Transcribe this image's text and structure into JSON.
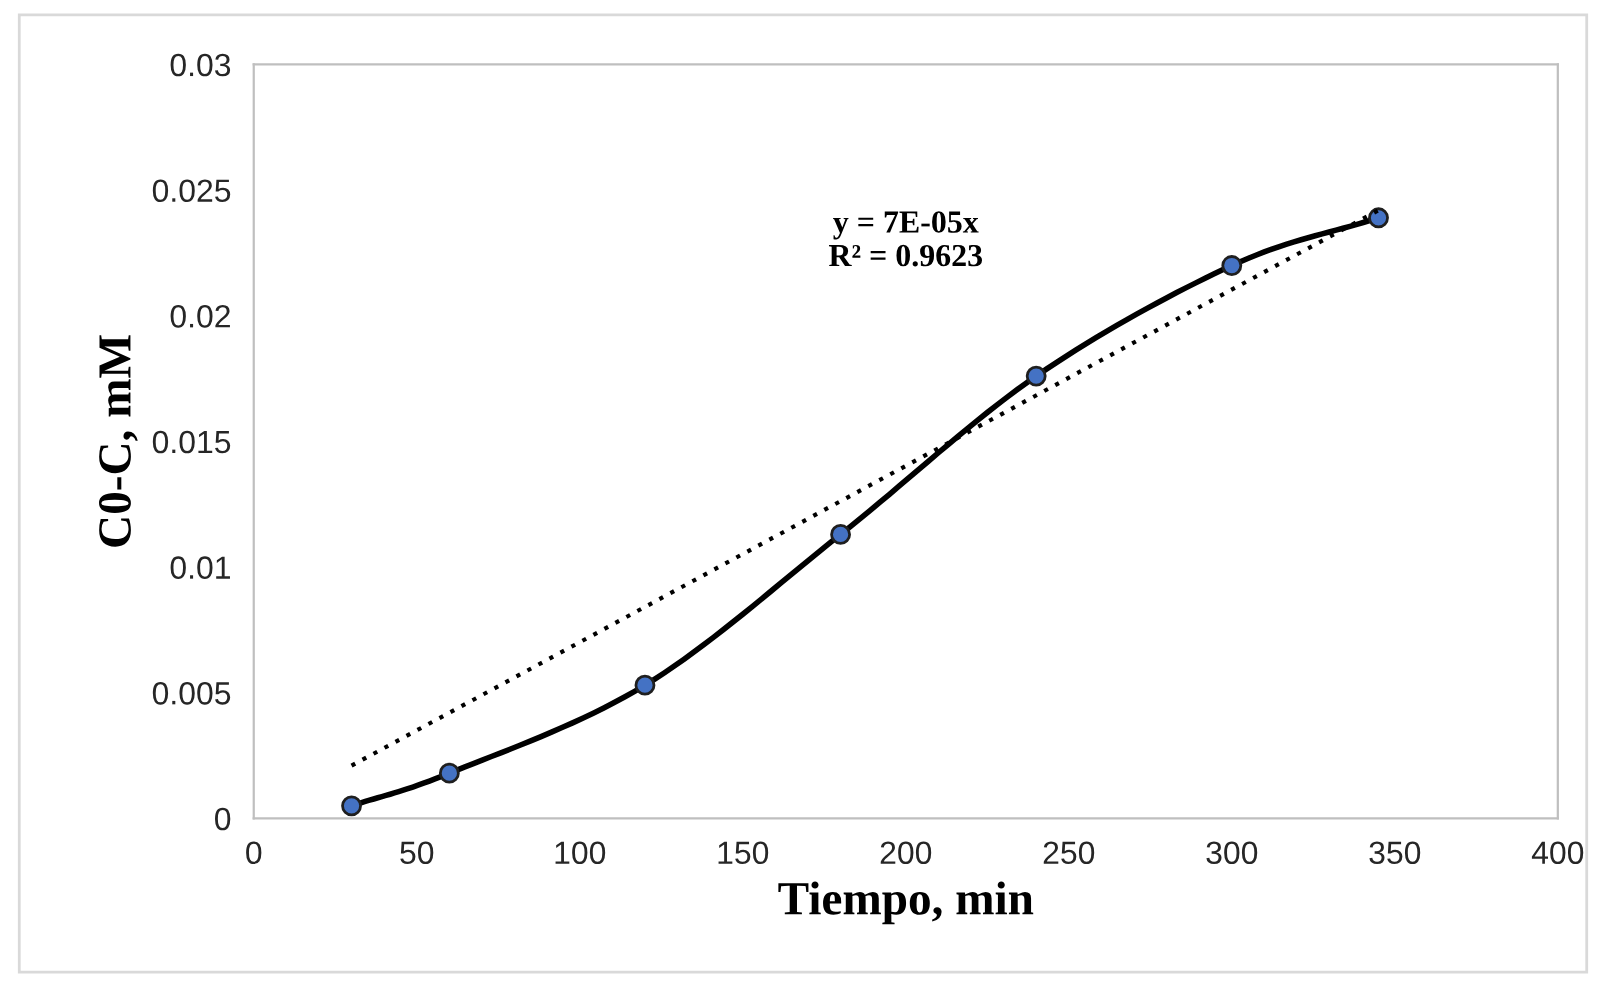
{
  "chart_data": {
    "type": "line",
    "xlabel": "Tiempo, min",
    "ylabel": "C0-C, mM",
    "x": [
      30,
      60,
      120,
      180,
      240,
      300,
      345
    ],
    "series": [
      {
        "color": "#000000",
        "marker": "circle",
        "line_style": "solid",
        "values": [
          0.0005,
          0.0018,
          0.0053,
          0.0113,
          0.0176,
          0.022,
          0.0239
        ]
      },
      {
        "type": "line",
        "color": "#000000",
        "marker": "none",
        "line_style": "dotted",
        "x": [
          30,
          345
        ],
        "values": [
          0.0021,
          0.0242
        ]
      }
    ],
    "annotations": [
      "y = 7E-05x\nR² = 0.9623"
    ],
    "xlim": [
      0,
      400
    ],
    "xticks": [
      0,
      50,
      100,
      150,
      200,
      250,
      300,
      350,
      400
    ],
    "ylim": [
      0,
      0.03
    ],
    "yticks": [
      0,
      0.005,
      0.01,
      0.015,
      0.02,
      0.025,
      0.03
    ],
    "grid": false,
    "legend": false
  }
}
